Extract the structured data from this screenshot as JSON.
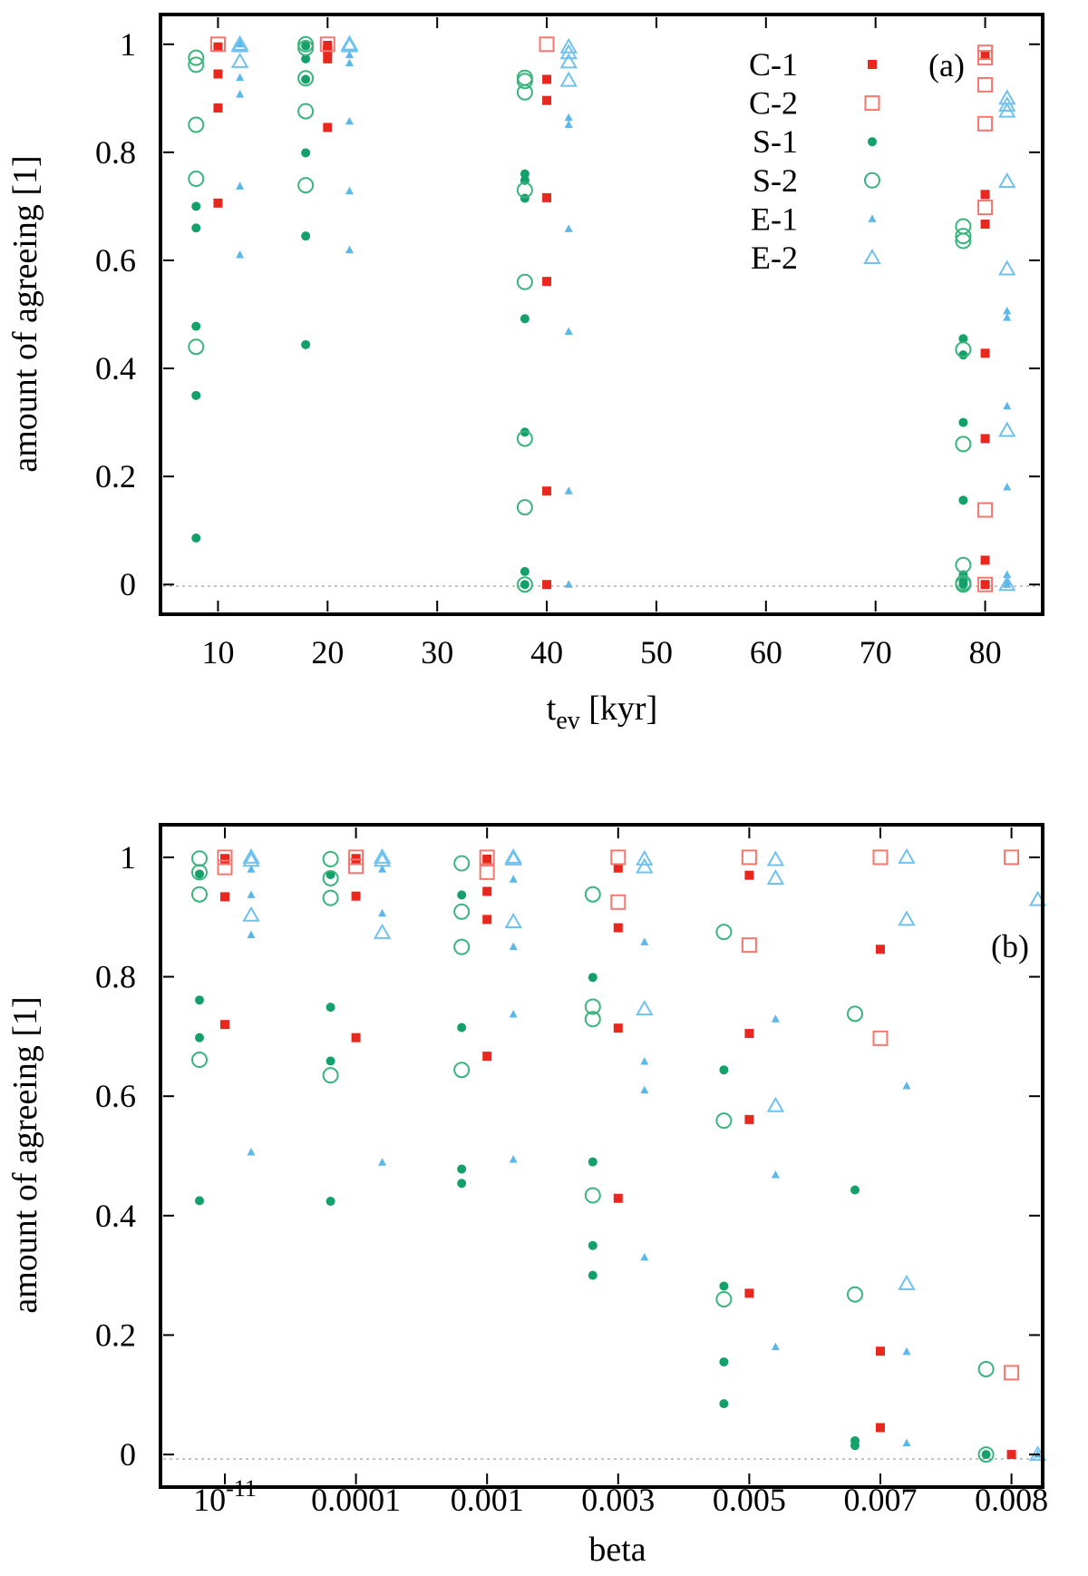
{
  "chart_data": [
    {
      "type": "scatter",
      "panel_label": "(a)",
      "xlabel_main": "t",
      "xlabel_sub": "ev",
      "xlabel_unit": " [kyr]",
      "ylabel": "amount of agreeing [1]",
      "xlim": [
        5,
        85
      ],
      "ylim": [
        -0.05,
        1.05
      ],
      "x_ticks": [
        10,
        20,
        30,
        40,
        50,
        60,
        70,
        80
      ],
      "x_tick_labels": [
        "10",
        "20",
        "30",
        "40",
        "50",
        "60",
        "70",
        "80"
      ],
      "y_ticks": [
        0,
        0.2,
        0.4,
        0.6,
        0.8,
        1
      ],
      "y_tick_labels": [
        "0",
        "0.2",
        "0.4",
        "0.6",
        "0.8",
        "1"
      ],
      "zero_line": true,
      "legend_position": "top-right",
      "series": [
        {
          "name": "C-1",
          "marker": "filled-square",
          "color": "#e8281e",
          "x": [
            10,
            10,
            10,
            10,
            20,
            20,
            20,
            20,
            20,
            40,
            40,
            40,
            40,
            40,
            40,
            80,
            80,
            80,
            80,
            80,
            80,
            80
          ],
          "y": [
            0.995,
            0.945,
            0.882,
            0.706,
            0.998,
            0.99,
            0.973,
            0.846,
            0.988,
            0.935,
            0.896,
            0.716,
            0.561,
            0.173,
            0.0,
            0.98,
            0.722,
            0.667,
            0.428,
            0.27,
            0.045,
            0.0
          ]
        },
        {
          "name": "C-2",
          "marker": "open-square",
          "color": "#f4776f",
          "x": [
            10,
            20,
            40,
            80,
            80,
            80,
            80,
            80,
            80,
            80
          ],
          "y": [
            1.0,
            1.0,
            1.0,
            0.985,
            0.975,
            0.925,
            0.853,
            0.698,
            0.138,
            0.0
          ]
        },
        {
          "name": "S-1",
          "marker": "filled-circle",
          "color": "#13a06a",
          "x": [
            8,
            8,
            8,
            8,
            8,
            18,
            18,
            18,
            18,
            18,
            18,
            38,
            38,
            38,
            38,
            38,
            38,
            38,
            78,
            78,
            78,
            78,
            78,
            78,
            78
          ],
          "y": [
            0.7,
            0.66,
            0.478,
            0.35,
            0.086,
            0.997,
            0.973,
            0.935,
            0.799,
            0.645,
            0.444,
            0.76,
            0.748,
            0.715,
            0.492,
            0.282,
            0.024,
            0.0,
            0.455,
            0.425,
            0.3,
            0.156,
            0.018,
            0.006,
            0.0
          ]
        },
        {
          "name": "S-2",
          "marker": "open-circle",
          "color": "#3ab47c",
          "x": [
            8,
            8,
            8,
            8,
            8,
            18,
            18,
            18,
            18,
            18,
            38,
            38,
            38,
            38,
            38,
            38,
            38,
            38,
            78,
            78,
            78,
            78,
            78,
            78,
            78,
            78
          ],
          "y": [
            0.975,
            0.962,
            0.851,
            0.751,
            0.44,
            1.0,
            0.993,
            0.937,
            0.876,
            0.739,
            0.938,
            0.932,
            0.911,
            0.73,
            0.56,
            0.27,
            0.143,
            0.0,
            0.663,
            0.645,
            0.636,
            0.435,
            0.26,
            0.036,
            0.003,
            0.0
          ]
        },
        {
          "name": "E-1",
          "marker": "filled-triangle",
          "color": "#5bb8e8",
          "x": [
            12,
            12,
            12,
            12,
            12,
            22,
            22,
            22,
            22,
            22,
            42,
            42,
            42,
            42,
            42,
            42,
            82,
            82,
            82,
            82,
            82,
            82,
            82,
            82
          ],
          "y": [
            1.0,
            0.938,
            0.907,
            0.737,
            0.61,
            0.98,
            0.965,
            0.857,
            0.728,
            0.619,
            0.864,
            0.851,
            0.658,
            0.468,
            0.173,
            0.0,
            0.506,
            0.494,
            0.33,
            0.18,
            0.018,
            0.005,
            0.0,
            0.0
          ]
        },
        {
          "name": "E-2",
          "marker": "open-triangle",
          "color": "#6fc2ee",
          "x": [
            12,
            12,
            12,
            22,
            22,
            22,
            42,
            42,
            42,
            42,
            82,
            82,
            82,
            82,
            82,
            82,
            82
          ],
          "y": [
            1.0,
            0.997,
            0.968,
            1.0,
            1.0,
            0.997,
            0.995,
            0.984,
            0.967,
            0.933,
            0.9,
            0.887,
            0.876,
            0.746,
            0.584,
            0.285,
            0.0
          ]
        }
      ]
    },
    {
      "type": "scatter",
      "panel_label": "(b)",
      "xlabel": "beta",
      "ylabel": "amount of agreeing [1]",
      "ylim": [
        -0.05,
        1.05
      ],
      "categories": [
        "10^-11",
        "0.0001",
        "0.001",
        "0.003",
        "0.005",
        "0.007",
        "0.008"
      ],
      "first_category_base": "10",
      "first_category_exponent": "-11",
      "y_ticks": [
        0,
        0.2,
        0.4,
        0.6,
        0.8,
        1
      ],
      "y_tick_labels": [
        "0",
        "0.2",
        "0.4",
        "0.6",
        "0.8",
        "1"
      ],
      "zero_line": true,
      "series": [
        {
          "name": "C-1",
          "marker": "filled-square",
          "color": "#e8281e",
          "category_index": [
            0,
            0,
            0,
            0,
            1,
            1,
            1,
            1,
            2,
            2,
            2,
            2,
            3,
            3,
            3,
            3,
            4,
            4,
            4,
            4,
            5,
            5,
            5,
            6
          ],
          "y": [
            0.998,
            0.995,
            0.934,
            0.72,
            0.998,
            0.996,
            0.935,
            0.698,
            0.997,
            0.943,
            0.896,
            0.667,
            0.982,
            0.882,
            0.714,
            0.429,
            0.97,
            0.705,
            0.561,
            0.27,
            0.846,
            0.173,
            0.045,
            0.0
          ]
        },
        {
          "name": "C-2",
          "marker": "open-square",
          "color": "#f4776f",
          "category_index": [
            0,
            0,
            1,
            1,
            2,
            2,
            3,
            3,
            4,
            4,
            5,
            5,
            6,
            6
          ],
          "y": [
            1.0,
            0.983,
            1.0,
            0.985,
            1.0,
            0.975,
            1.0,
            0.925,
            1.0,
            0.853,
            1.0,
            0.697,
            1.0,
            0.137
          ]
        },
        {
          "name": "S-1",
          "marker": "filled-circle",
          "color": "#13a06a",
          "category_index": [
            0,
            0,
            0,
            0,
            1,
            1,
            1,
            1,
            2,
            2,
            2,
            2,
            3,
            3,
            3,
            3,
            4,
            4,
            4,
            4,
            5,
            5,
            5,
            6
          ],
          "y": [
            0.972,
            0.761,
            0.698,
            0.425,
            0.971,
            0.749,
            0.659,
            0.424,
            0.937,
            0.715,
            0.478,
            0.454,
            0.799,
            0.49,
            0.35,
            0.3,
            0.644,
            0.282,
            0.155,
            0.085,
            0.443,
            0.023,
            0.015,
            0.0
          ]
        },
        {
          "name": "S-2",
          "marker": "open-circle",
          "color": "#3ab47c",
          "category_index": [
            0,
            0,
            0,
            0,
            1,
            1,
            1,
            1,
            2,
            2,
            2,
            2,
            3,
            3,
            3,
            3,
            4,
            4,
            4,
            5,
            5,
            6,
            6
          ],
          "y": [
            0.998,
            0.975,
            0.938,
            0.661,
            0.997,
            0.965,
            0.932,
            0.635,
            0.99,
            0.909,
            0.85,
            0.644,
            0.938,
            0.75,
            0.729,
            0.434,
            0.875,
            0.559,
            0.26,
            0.738,
            0.268,
            0.143,
            0.0
          ]
        },
        {
          "name": "E-1",
          "marker": "filled-triangle",
          "color": "#5bb8e8",
          "category_index": [
            0,
            0,
            0,
            0,
            1,
            1,
            1,
            2,
            2,
            2,
            2,
            3,
            3,
            3,
            3,
            4,
            4,
            4,
            5,
            5,
            5,
            6
          ],
          "y": [
            0.98,
            0.937,
            0.87,
            0.506,
            0.98,
            0.906,
            0.489,
            0.963,
            0.85,
            0.737,
            0.494,
            0.858,
            0.658,
            0.61,
            0.33,
            0.729,
            0.468,
            0.18,
            0.617,
            0.172,
            0.019,
            0.0
          ]
        },
        {
          "name": "E-2",
          "marker": "open-triangle",
          "color": "#6fc2ee",
          "category_index": [
            0,
            0,
            0,
            1,
            1,
            1,
            2,
            2,
            2,
            3,
            3,
            3,
            4,
            4,
            4,
            5,
            5,
            5,
            6,
            6
          ],
          "y": [
            1.0,
            0.995,
            0.903,
            1.0,
            0.995,
            0.874,
            1.0,
            0.997,
            0.892,
            0.997,
            0.984,
            0.746,
            0.996,
            0.965,
            0.584,
            1.0,
            0.896,
            0.286,
            0.929,
            0.0
          ]
        }
      ]
    }
  ]
}
